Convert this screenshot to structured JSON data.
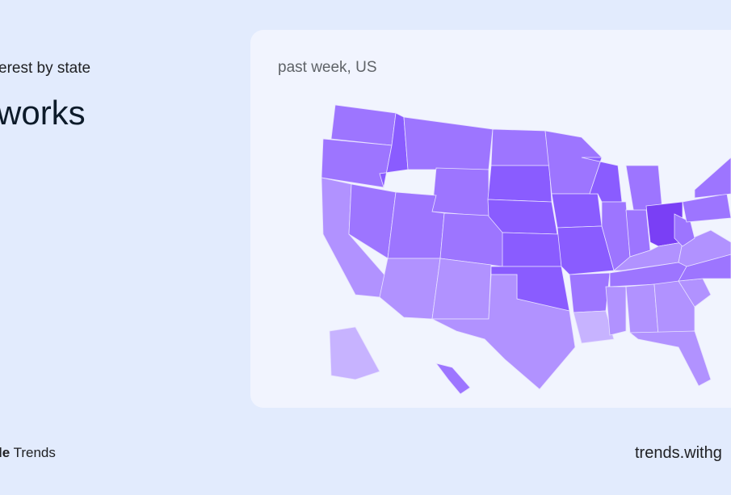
{
  "header": {
    "subtitle": "erest by state",
    "title": "works"
  },
  "card": {
    "label": "past week, US"
  },
  "footer": {
    "brand_logo": "le",
    "brand_product": "Trends",
    "url": "trends.withg"
  },
  "colors": {
    "background": "#e2ebfd",
    "card": "#f1f4fe",
    "level_1": "#c7b3ff",
    "level_2": "#b192ff",
    "level_3": "#9d75ff",
    "level_4": "#8a5cff",
    "level_5": "#7a3ff5"
  },
  "chart_data": {
    "type": "choropleth",
    "region": "US",
    "levels": {
      "WA": 3,
      "OR": 3,
      "CA": 2,
      "NV": 3,
      "ID": 4,
      "MT": 3,
      "WY": 3,
      "UT": 3,
      "CO": 3,
      "AZ": 2,
      "NM": 2,
      "ND": 3,
      "SD": 4,
      "NE": 4,
      "KS": 4,
      "OK": 4,
      "TX": 2,
      "MN": 3,
      "IA": 4,
      "MO": 4,
      "AR": 3,
      "LA": 1,
      "WI": 4,
      "IL": 3,
      "MI": 3,
      "IN": 3,
      "OH": 5,
      "KY": 2,
      "TN": 3,
      "MS": 2,
      "AL": 2,
      "GA": 2,
      "FL": 2,
      "SC": 2,
      "NC": 3,
      "VA": 2,
      "WV": 3,
      "PA": 3,
      "NY": 3,
      "AK": 1,
      "HI": 3
    }
  }
}
